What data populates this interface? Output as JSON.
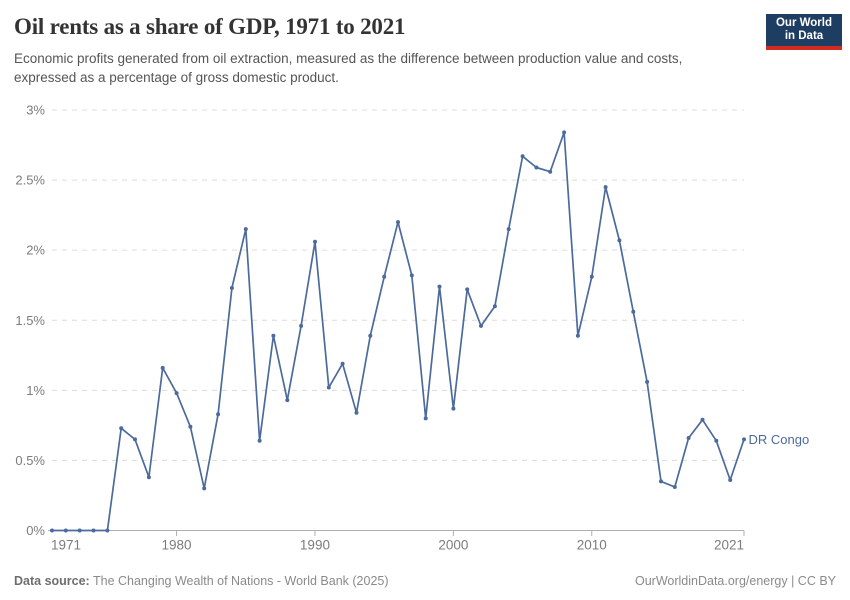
{
  "header": {
    "title": "Oil rents as a share of GDP, 1971 to 2021",
    "subtitle": "Economic profits generated from oil extraction, measured as the difference between production value and costs, expressed as a percentage of gross domestic product.",
    "logo": {
      "line1": "Our World",
      "line2": "in Data",
      "bg_color": "#1d3d63",
      "accent_color": "#d42b21"
    }
  },
  "chart_data": {
    "type": "line",
    "title": "Oil rents as a share of GDP, 1971 to 2021",
    "xlabel": "",
    "ylabel": "",
    "xlim": [
      1971,
      2021
    ],
    "ylim": [
      0,
      3
    ],
    "grid": "horizontal-dashed",
    "legend_position": "end-of-line-label",
    "yticks": [
      0,
      0.5,
      1,
      1.5,
      2,
      2.5,
      3
    ],
    "ytick_labels": [
      "0%",
      "0.5%",
      "1%",
      "1.5%",
      "2%",
      "2.5%",
      "3%"
    ],
    "xticks": [
      1971,
      1980,
      1990,
      2000,
      2010,
      2021
    ],
    "xtick_labels": [
      "1971",
      "1980",
      "1990",
      "2000",
      "2010",
      "2021"
    ],
    "x": [
      1971,
      1972,
      1973,
      1974,
      1975,
      1976,
      1977,
      1978,
      1979,
      1980,
      1981,
      1982,
      1983,
      1984,
      1985,
      1986,
      1987,
      1988,
      1989,
      1990,
      1991,
      1992,
      1993,
      1994,
      1995,
      1996,
      1997,
      1998,
      1999,
      2000,
      2001,
      2002,
      2003,
      2004,
      2005,
      2006,
      2007,
      2008,
      2009,
      2010,
      2011,
      2012,
      2013,
      2014,
      2015,
      2016,
      2017,
      2018,
      2019,
      2020,
      2021
    ],
    "series": [
      {
        "name": "DR Congo",
        "color": "#4c6a9c",
        "values": [
          0,
          0,
          0,
          0,
          0,
          0.73,
          0.65,
          0.38,
          1.16,
          0.98,
          0.74,
          0.3,
          0.83,
          1.73,
          2.15,
          0.64,
          1.39,
          0.93,
          1.46,
          2.06,
          1.02,
          1.19,
          0.84,
          1.39,
          1.81,
          2.2,
          1.82,
          0.8,
          1.74,
          0.87,
          1.72,
          1.46,
          1.6,
          2.15,
          2.67,
          2.59,
          2.56,
          2.84,
          1.39,
          1.81,
          2.45,
          2.07,
          1.56,
          1.06,
          0.35,
          0.31,
          0.66,
          0.79,
          0.64,
          0.36,
          0.65
        ]
      }
    ]
  },
  "footer": {
    "source_label": "Data source:",
    "source_text": "The Changing Wealth of Nations - World Bank (2025)",
    "credit": "OurWorldinData.org/energy | CC BY"
  },
  "colors": {
    "line": "#4c6a9c",
    "grid": "#dcdcdc",
    "axis": "#b0b0b0",
    "axis_text": "#7c7c7c",
    "logo_bg": "#1d3d63",
    "logo_accent": "#d42b21"
  }
}
